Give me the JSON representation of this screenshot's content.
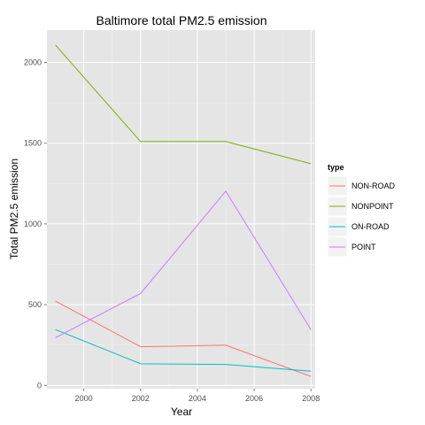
{
  "chart_data": {
    "type": "line",
    "title": "Baltimore total PM2.5 emission",
    "xlabel": "Year",
    "ylabel": "Total PM2.5 emission",
    "x": [
      1999,
      2002,
      2005,
      2008
    ],
    "xlim": [
      1998.7,
      2008.15
    ],
    "ylim": [
      -20,
      2200
    ],
    "xticks": [
      2000,
      2002,
      2004,
      2006,
      2008
    ],
    "yticks": [
      0,
      500,
      1000,
      1500,
      2000
    ],
    "xtick_labels": [
      "2000",
      "2002",
      "2004",
      "2006",
      "2008"
    ],
    "ytick_labels": [
      "0",
      "500",
      "1000",
      "1500",
      "2000"
    ],
    "grid": true,
    "legend": {
      "title": "type",
      "position": "right"
    },
    "series": [
      {
        "name": "NON-ROAD",
        "color": "#F8766D",
        "values": [
          522,
          240,
          249,
          56
        ]
      },
      {
        "name": "NONPOINT",
        "color": "#7CAE00",
        "values": [
          2108,
          1510,
          1510,
          1373
        ]
      },
      {
        "name": "ON-ROAD",
        "color": "#00BFC4",
        "values": [
          346,
          134,
          130,
          88
        ]
      },
      {
        "name": "POINT",
        "color": "#C77CFF",
        "values": [
          296,
          569,
          1203,
          345
        ]
      }
    ]
  }
}
